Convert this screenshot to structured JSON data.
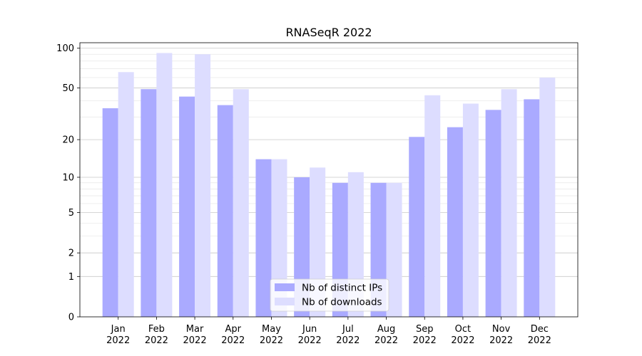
{
  "chart_data": {
    "type": "bar",
    "title": "RNASeqR 2022",
    "xlabel": "",
    "ylabel": "",
    "yscale": "symlog",
    "ylim": [
      0,
      110
    ],
    "yticks": [
      0,
      1,
      2,
      5,
      10,
      20,
      50,
      100
    ],
    "grid": true,
    "legend_position": "lower-center",
    "categories": [
      [
        "Jan",
        "2022"
      ],
      [
        "Feb",
        "2022"
      ],
      [
        "Mar",
        "2022"
      ],
      [
        "Apr",
        "2022"
      ],
      [
        "May",
        "2022"
      ],
      [
        "Jun",
        "2022"
      ],
      [
        "Jul",
        "2022"
      ],
      [
        "Aug",
        "2022"
      ],
      [
        "Sep",
        "2022"
      ],
      [
        "Oct",
        "2022"
      ],
      [
        "Nov",
        "2022"
      ],
      [
        "Dec",
        "2022"
      ]
    ],
    "series": [
      {
        "name": "Nb of distinct IPs",
        "color": "#aaaaff",
        "values": [
          35,
          49,
          43,
          37,
          14,
          10,
          9,
          9,
          21,
          25,
          34,
          41
        ]
      },
      {
        "name": "Nb of downloads",
        "color": "#ddddff",
        "values": [
          66,
          92,
          90,
          49,
          14,
          12,
          11,
          9,
          44,
          38,
          49,
          60
        ]
      }
    ]
  }
}
